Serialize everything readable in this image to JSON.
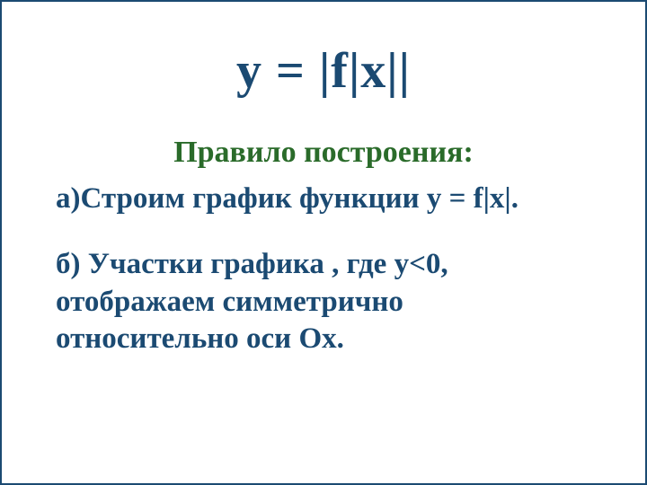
{
  "slide": {
    "title": "y = |f|x||",
    "subtitle": "Правило построения:",
    "point_a": "а)Строим график функции  y = f|x|.",
    "point_b": "б) Участки графика , где  y<0, отображаем симметрично относительно оси Ох.",
    "colors": {
      "title_color": "#1b4a72",
      "subtitle_color": "#2a6b2a",
      "body_color": "#1b4a72",
      "background": "#ffffff",
      "border": "#1b4a72"
    },
    "typography": {
      "title_fontsize": 56,
      "subtitle_fontsize": 34,
      "body_fontsize": 33,
      "font_family": "Times New Roman",
      "font_weight": "bold"
    }
  }
}
